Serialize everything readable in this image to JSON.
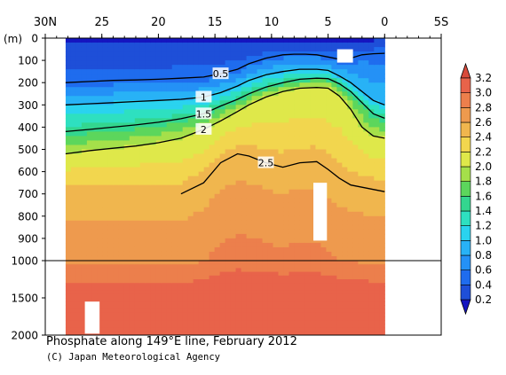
{
  "caption": {
    "title": "Phosphate along 149°E line, February 2012",
    "credit": "(C) Japan Meteorological Agency"
  },
  "chart_data": {
    "type": "heatmap",
    "title": "Phosphate along 149°E line, February 2012",
    "y_unit_label": "(m)",
    "x_ticks": [
      "30N",
      "25",
      "20",
      "15",
      "10",
      "5",
      "0",
      "5S"
    ],
    "x_tick_values": [
      30,
      25,
      20,
      15,
      10,
      5,
      0,
      -5
    ],
    "xlim": [
      30,
      -5
    ],
    "data_xlim": [
      28.2,
      0
    ],
    "y_ticks_upper": [
      0,
      100,
      200,
      300,
      400,
      500,
      600,
      700,
      800,
      900,
      1000
    ],
    "y_ticks_lower": [
      1500,
      2000
    ],
    "ylim": [
      0,
      2000
    ],
    "y_break": 1000,
    "colorbar": {
      "levels": [
        0.2,
        0.4,
        0.6,
        0.8,
        1.0,
        1.2,
        1.4,
        1.6,
        1.8,
        2.0,
        2.2,
        2.4,
        2.6,
        2.8,
        3.0,
        3.2
      ],
      "labels": [
        "0.2",
        "0.4",
        "0.6",
        "0.8",
        "1.0",
        "1.2",
        "1.4",
        "1.6",
        "1.8",
        "2.0",
        "2.2",
        "2.4",
        "2.6",
        "2.8",
        "3.0",
        "3.2"
      ],
      "colors": [
        "#1e4fd8",
        "#1f6cee",
        "#2491f6",
        "#28b2f6",
        "#2ad3ef",
        "#2ee0c0",
        "#33d68f",
        "#5cd65c",
        "#a5e04a",
        "#dfe84a",
        "#f2d64e",
        "#f0b64e",
        "#ee9a4e",
        "#ec7f4c",
        "#e8634a"
      ],
      "under_color": "#1515c0",
      "over_color": "#d84a3a"
    },
    "contours": [
      {
        "level": 0.5,
        "label": "0.5",
        "points": [
          [
            28.2,
            200
          ],
          [
            26,
            195
          ],
          [
            24,
            190
          ],
          [
            22,
            188
          ],
          [
            20,
            185
          ],
          [
            18,
            180
          ],
          [
            16,
            175
          ],
          [
            14.5,
            160
          ],
          [
            13,
            140
          ],
          [
            12,
            115
          ],
          [
            10.5,
            90
          ],
          [
            9,
            75
          ],
          [
            8,
            72
          ],
          [
            7,
            72
          ],
          [
            6,
            75
          ],
          [
            5,
            85
          ],
          [
            4,
            95
          ],
          [
            3,
            90
          ],
          [
            2,
            75
          ],
          [
            1,
            70
          ],
          [
            0,
            68
          ]
        ]
      },
      {
        "level": 1.0,
        "label": "1",
        "points": [
          [
            28.2,
            300
          ],
          [
            26,
            295
          ],
          [
            24,
            290
          ],
          [
            22,
            285
          ],
          [
            20,
            280
          ],
          [
            18,
            275
          ],
          [
            16,
            265
          ],
          [
            14.5,
            245
          ],
          [
            13,
            215
          ],
          [
            12,
            190
          ],
          [
            10.5,
            165
          ],
          [
            9,
            150
          ],
          [
            7.5,
            140
          ],
          [
            6,
            140
          ],
          [
            5,
            145
          ],
          [
            4,
            170
          ],
          [
            3,
            200
          ],
          [
            2,
            240
          ],
          [
            1,
            280
          ],
          [
            0,
            300
          ]
        ]
      },
      {
        "level": 1.5,
        "label": "1.5",
        "points": [
          [
            28.2,
            420
          ],
          [
            26,
            410
          ],
          [
            24,
            400
          ],
          [
            22,
            390
          ],
          [
            20,
            378
          ],
          [
            18,
            362
          ],
          [
            16,
            340
          ],
          [
            14.5,
            305
          ],
          [
            13,
            275
          ],
          [
            12,
            250
          ],
          [
            10.5,
            220
          ],
          [
            9,
            200
          ],
          [
            7.5,
            185
          ],
          [
            6,
            180
          ],
          [
            5,
            182
          ],
          [
            4,
            205
          ],
          [
            3,
            240
          ],
          [
            2,
            290
          ],
          [
            1,
            340
          ],
          [
            0,
            360
          ]
        ]
      },
      {
        "level": 2.0,
        "label": "2",
        "points": [
          [
            28.2,
            520
          ],
          [
            26,
            505
          ],
          [
            24,
            495
          ],
          [
            22,
            485
          ],
          [
            20,
            470
          ],
          [
            18,
            450
          ],
          [
            16,
            410
          ],
          [
            14.5,
            372
          ],
          [
            13,
            330
          ],
          [
            12,
            300
          ],
          [
            10.5,
            265
          ],
          [
            9,
            240
          ],
          [
            7.5,
            225
          ],
          [
            6,
            222
          ],
          [
            5,
            225
          ],
          [
            4,
            260
          ],
          [
            3,
            320
          ],
          [
            2,
            400
          ],
          [
            1,
            440
          ],
          [
            0,
            450
          ]
        ]
      },
      {
        "level": 2.5,
        "label": "2.5",
        "points": [
          [
            18,
            700
          ],
          [
            16,
            650
          ],
          [
            14.5,
            560
          ],
          [
            13,
            520
          ],
          [
            12,
            530
          ],
          [
            10.5,
            560
          ],
          [
            9,
            580
          ],
          [
            7.5,
            560
          ],
          [
            6,
            555
          ],
          [
            5,
            590
          ],
          [
            4,
            630
          ],
          [
            3,
            660
          ],
          [
            2,
            670
          ],
          [
            1,
            680
          ],
          [
            0,
            690
          ]
        ]
      }
    ],
    "missing_boxes": [
      {
        "x": [
          4.2,
          2.8
        ],
        "y": [
          50,
          110
        ]
      },
      {
        "x": [
          6.3,
          5.1
        ],
        "y": [
          650,
          910
        ]
      },
      {
        "x": [
          26.5,
          25.2
        ],
        "y": [
          1550,
          1980
        ]
      }
    ]
  }
}
